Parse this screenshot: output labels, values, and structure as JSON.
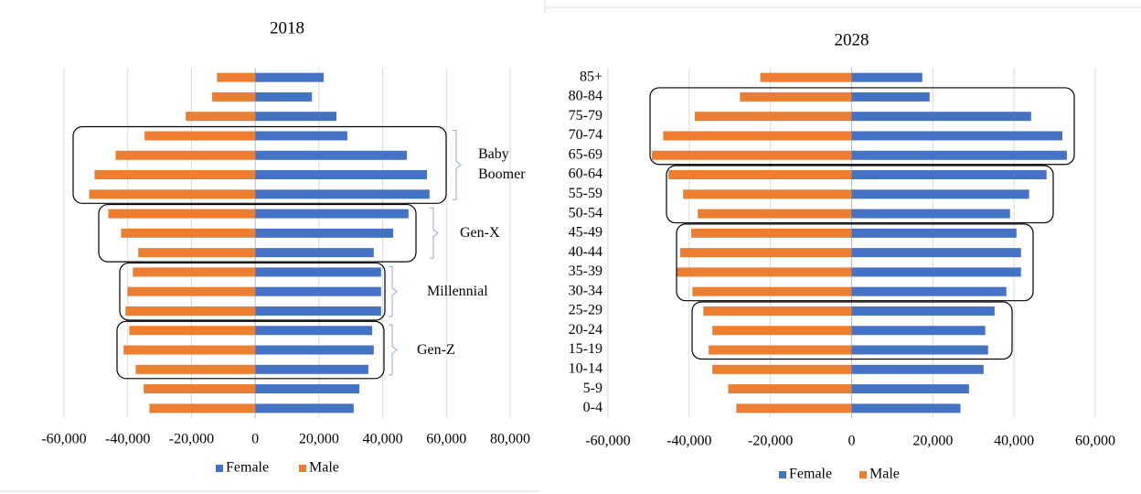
{
  "chart_data": [
    {
      "type": "bar",
      "orientation": "horizontal",
      "title": "2018",
      "categories": [
        null,
        null,
        null,
        null,
        null,
        null,
        null,
        null,
        null,
        null,
        null,
        null,
        null,
        null,
        null,
        null,
        null,
        null
      ],
      "series": [
        {
          "name": "Female",
          "color": "#4472c4",
          "values": [
            21500,
            17800,
            25500,
            28900,
            47600,
            53900,
            54700,
            48100,
            43300,
            37200,
            39500,
            39500,
            39500,
            36700,
            37200,
            35500,
            32700,
            30900
          ]
        },
        {
          "name": "Male",
          "color": "#ed7d31",
          "values": [
            -12000,
            -13500,
            -21800,
            -34700,
            -43800,
            -50400,
            -52100,
            -46100,
            -42100,
            -36700,
            -38400,
            -40100,
            -40700,
            -39500,
            -41300,
            -37500,
            -35000,
            -33200
          ]
        }
      ],
      "xlim": [
        -60000,
        80000
      ],
      "xticks": [
        {
          "value": -60000,
          "label": "-60,000"
        },
        {
          "value": -40000,
          "label": "-40,000"
        },
        {
          "value": -20000,
          "label": "-20,000"
        },
        0,
        {
          "value": 20000,
          "label": "20,000"
        },
        {
          "value": 40000,
          "label": "40,000"
        },
        {
          "value": 60000,
          "label": "60,000"
        },
        {
          "value": 80000,
          "label": "80,000"
        }
      ],
      "grid": true,
      "legend": "bottom",
      "annotations": [
        "Baby Boomer",
        "Gen-X",
        "Millennial",
        "Gen-Z"
      ]
    },
    {
      "type": "bar",
      "orientation": "horizontal",
      "title": "2028",
      "categories": [
        "85+",
        "80-84",
        "75-79",
        "70-74",
        "65-69",
        "60-64",
        "55-59",
        "50-54",
        "45-49",
        "40-44",
        "35-39",
        "30-34",
        "25-29",
        "20-24",
        "15-19",
        "10-14",
        "5-9",
        "0-4"
      ],
      "series": [
        {
          "name": "Female",
          "color": "#4472c4",
          "values": [
            17400,
            19200,
            44200,
            51900,
            53000,
            48000,
            43700,
            39000,
            40600,
            41700,
            41700,
            38100,
            35200,
            32900,
            33600,
            32500,
            28900,
            26800
          ]
        },
        {
          "name": "Male",
          "color": "#ed7d31",
          "values": [
            -22500,
            -27500,
            -38600,
            -46400,
            -49200,
            -45100,
            -41500,
            -37900,
            -39500,
            -42200,
            -43100,
            -39200,
            -36500,
            -34300,
            -35200,
            -34300,
            -30400,
            -28400
          ]
        }
      ],
      "xlim": [
        -60000,
        60000
      ],
      "xticks": [
        {
          "value": -60000,
          "label": "-60,000"
        },
        {
          "value": -40000,
          "label": "-40,000"
        },
        {
          "value": -20000,
          "label": "-20,000"
        },
        0,
        {
          "value": 20000,
          "label": "20,000"
        },
        {
          "value": 40000,
          "label": "40,000"
        },
        {
          "value": 60000,
          "label": "60,000"
        }
      ],
      "grid": true,
      "legend": "bottom"
    }
  ]
}
